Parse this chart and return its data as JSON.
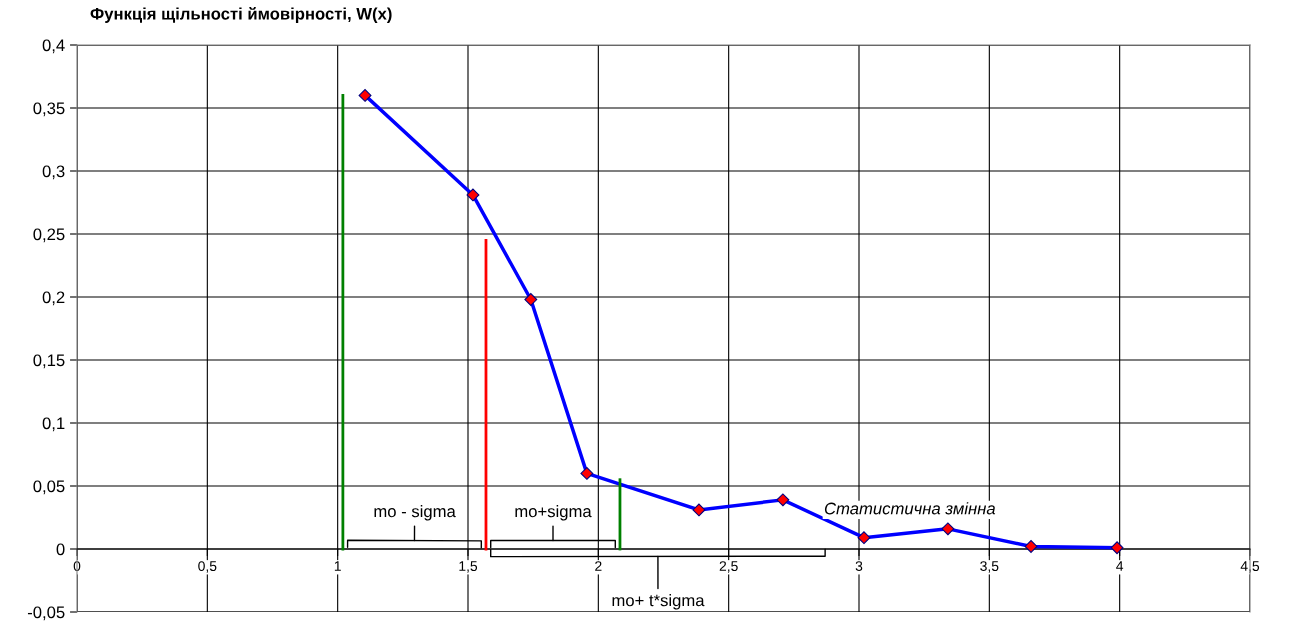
{
  "chart_data": {
    "type": "line",
    "ylabel": "Функція щільності ймовірності, W(x)",
    "xlabel": "Статистична змінна",
    "x": [
      1.105,
      1.519,
      1.741,
      1.956,
      2.386,
      2.708,
      3.019,
      3.341,
      3.66,
      3.99
    ],
    "series": [
      {
        "color": "#0000ff",
        "values": [
          0.36,
          0.281,
          0.198,
          0.06,
          0.031,
          0.039,
          0.009,
          0.016,
          0.002,
          0.001
        ],
        "marker": "diamond"
      },
      {
        "type": "line",
        "color": "#008000",
        "x": [
          1.02,
          1.02
        ],
        "values": [
          0,
          0.36
        ],
        "marker": "none"
      },
      {
        "type": "line",
        "color": "#ff0000",
        "x": [
          1.569,
          1.569
        ],
        "values": [
          0,
          0.245
        ],
        "marker": "none"
      },
      {
        "type": "line",
        "color": "#008000",
        "x": [
          2.083,
          2.083
        ],
        "values": [
          0,
          0.055
        ],
        "marker": "none"
      }
    ],
    "annotations": [
      "mo - sigma",
      "mo+sigma",
      "mo+ t*sigma"
    ],
    "xlim": [
      0,
      4.5
    ],
    "ylim": [
      -0.05,
      0.4
    ],
    "xticks": [
      0,
      {
        "value": 0.5,
        "label": "0,5"
      },
      1,
      {
        "value": 1.5,
        "label": "1,5"
      },
      2,
      {
        "value": 2.5,
        "label": "2,5"
      },
      3,
      {
        "value": 3.5,
        "label": "3,5"
      },
      4,
      {
        "value": 4.5,
        "label": "4,5"
      }
    ],
    "yticks": [
      {
        "value": -0.05,
        "label": "-0,05"
      },
      0,
      {
        "value": 0.05,
        "label": "0,05"
      },
      {
        "value": 0.1,
        "label": "0,1"
      },
      {
        "value": 0.15,
        "label": "0,15"
      },
      {
        "value": 0.2,
        "label": "0,2"
      },
      {
        "value": 0.25,
        "label": "0,25"
      },
      {
        "value": 0.3,
        "label": "0,3"
      },
      {
        "value": 0.35,
        "label": "0,35"
      },
      {
        "value": 0.4,
        "label": "0,4"
      }
    ],
    "grid": true,
    "legend": false
  }
}
